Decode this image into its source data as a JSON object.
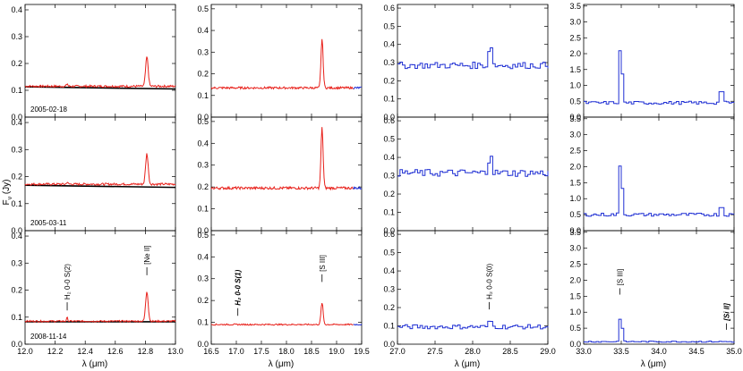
{
  "figure": {
    "ylabel_main": "F",
    "ylabel_sub": "ν",
    "ylabel_unit": " (Jy)",
    "xlabel": "λ (μm)"
  },
  "colors": {
    "red": "#e8211b",
    "blue": "#1f2fd4",
    "black": "#000000"
  },
  "chart_data": [
    {
      "id": "c0",
      "type": "line",
      "xlim": [
        12.0,
        13.0
      ],
      "ylim": [
        0.0,
        0.42
      ],
      "xticks": [
        12.0,
        12.2,
        12.4,
        12.6,
        12.8,
        13.0
      ],
      "xtick_labels": [
        "12.0",
        "12.2",
        "12.4",
        "12.6",
        "12.8",
        "13.0"
      ],
      "yticks": [
        0.0,
        0.1,
        0.2,
        0.3,
        0.4
      ],
      "ytick_labels": [
        "0.0",
        "0.1",
        "0.2",
        "0.3",
        "0.4"
      ],
      "rows": [
        {
          "date": "2005-02-18",
          "baseline": 0.115,
          "noise": 0.004,
          "line_color": "red",
          "black_fit": [
            [
              12.0,
              0.113
            ],
            [
              13.0,
              0.105
            ]
          ],
          "peaks": [
            {
              "x": 12.81,
              "peak": 0.225,
              "w": 0.012
            },
            {
              "x": 12.28,
              "peak": 0.125,
              "w": 0.006
            }
          ]
        },
        {
          "date": "2005-03-11",
          "baseline": 0.172,
          "noise": 0.004,
          "line_color": "red",
          "black_fit": [
            [
              12.0,
              0.168
            ],
            [
              13.0,
              0.16
            ]
          ],
          "peaks": [
            {
              "x": 12.81,
              "peak": 0.285,
              "w": 0.012
            },
            {
              "x": 12.28,
              "peak": 0.18,
              "w": 0.006
            }
          ]
        },
        {
          "date": "2008-11-14",
          "baseline": 0.085,
          "noise": 0.003,
          "line_color": "red",
          "black_fit": [
            [
              12.0,
              0.083
            ],
            [
              13.0,
              0.083
            ]
          ],
          "peaks": [
            {
              "x": 12.81,
              "peak": 0.195,
              "w": 0.012
            },
            {
              "x": 12.28,
              "peak": 0.098,
              "w": 0.006
            }
          ],
          "annotations": [
            {
              "x": 12.28,
              "y0": 0.125,
              "y1": 0.155,
              "label": "H₂ 0-0 S(2)",
              "bold_italic": false
            },
            {
              "x": 12.81,
              "y0": 0.255,
              "y1": 0.285,
              "label": "[Ne II]",
              "bold_italic": false
            }
          ]
        }
      ]
    },
    {
      "id": "c1",
      "type": "line",
      "xlim": [
        16.5,
        19.5
      ],
      "ylim": [
        0.0,
        0.52
      ],
      "xticks": [
        16.5,
        17.0,
        17.5,
        18.0,
        18.5,
        19.0,
        19.5
      ],
      "xtick_labels": [
        "16.5",
        "17.0",
        "17.5",
        "18.0",
        "18.5",
        "19.0",
        "19.5"
      ],
      "yticks": [
        0.0,
        0.1,
        0.2,
        0.3,
        0.4,
        0.5
      ],
      "ytick_labels": [
        "0.0",
        "0.1",
        "0.2",
        "0.3",
        "0.4",
        "0.5"
      ],
      "rows": [
        {
          "baseline": 0.135,
          "noise": 0.005,
          "line_color": "red",
          "blue_tail_from": 19.35,
          "peaks": [
            {
              "x": 18.71,
              "peak": 0.36,
              "w": 0.03
            }
          ]
        },
        {
          "baseline": 0.195,
          "noise": 0.006,
          "line_color": "red",
          "blue_tail_from": 19.35,
          "peaks": [
            {
              "x": 18.71,
              "peak": 0.47,
              "w": 0.03
            }
          ]
        },
        {
          "baseline": 0.09,
          "noise": 0.003,
          "line_color": "red",
          "blue_tail_from": 19.35,
          "peaks": [
            {
              "x": 18.71,
              "peak": 0.19,
              "w": 0.03
            }
          ],
          "annotations": [
            {
              "x": 17.03,
              "y0": 0.13,
              "y1": 0.165,
              "label": "H₂ 0-0 S(1)",
              "bold_italic": true
            },
            {
              "x": 18.71,
              "y0": 0.285,
              "y1": 0.32,
              "label": "[S III]",
              "bold_italic": false
            }
          ]
        }
      ]
    },
    {
      "id": "c2",
      "type": "line",
      "xlim": [
        27.0,
        29.0
      ],
      "ylim": [
        0.0,
        0.62
      ],
      "xticks": [
        27.0,
        27.5,
        28.0,
        28.5,
        29.0
      ],
      "xtick_labels": [
        "27.0",
        "27.5",
        "28.0",
        "28.5",
        "29.0"
      ],
      "yticks": [
        0.0,
        0.1,
        0.2,
        0.3,
        0.4,
        0.5,
        0.6
      ],
      "ytick_labels": [
        "0.0",
        "0.1",
        "0.2",
        "0.3",
        "0.4",
        "0.5",
        "0.6"
      ],
      "rows": [
        {
          "baseline": 0.285,
          "noise": 0.018,
          "line_color": "blue",
          "step": true,
          "peaks": [
            {
              "x": 28.22,
              "peak": 0.43,
              "w": 0.025
            }
          ]
        },
        {
          "baseline": 0.315,
          "noise": 0.02,
          "line_color": "blue",
          "step": true,
          "peaks": [
            {
              "x": 28.22,
              "peak": 0.455,
              "w": 0.025
            }
          ]
        },
        {
          "baseline": 0.095,
          "noise": 0.012,
          "line_color": "blue",
          "step": true,
          "peaks": [
            {
              "x": 28.22,
              "peak": 0.135,
              "w": 0.025
            }
          ],
          "annotations": [
            {
              "x": 28.22,
              "y0": 0.19,
              "y1": 0.23,
              "label": "H₂ 0-0 S(0)",
              "bold_italic": false
            }
          ]
        }
      ]
    },
    {
      "id": "c3",
      "type": "line",
      "xlim": [
        33.0,
        35.0
      ],
      "ylim": [
        0.0,
        3.55
      ],
      "xticks": [
        33.0,
        33.5,
        34.0,
        34.5,
        35.0
      ],
      "xtick_labels": [
        "33.0",
        "33.5",
        "34.0",
        "34.5",
        "35.0"
      ],
      "yticks": [
        0.0,
        0.5,
        1.0,
        1.5,
        2.0,
        2.5,
        3.0,
        3.5
      ],
      "ytick_labels": [
        "0.0",
        "0.5",
        "1.0",
        "1.5",
        "2.0",
        "2.5",
        "3.0",
        "3.5"
      ],
      "rows": [
        {
          "baseline": 0.45,
          "noise": 0.05,
          "line_color": "blue",
          "step": true,
          "peaks": [
            {
              "x": 33.48,
              "peak": 2.95,
              "w": 0.02
            }
          ],
          "edge_bump": {
            "x": 34.83,
            "peak": 0.8
          }
        },
        {
          "baseline": 0.5,
          "noise": 0.05,
          "line_color": "blue",
          "step": true,
          "peaks": [
            {
              "x": 33.48,
              "peak": 2.85,
              "w": 0.02
            }
          ],
          "edge_bump": {
            "x": 34.83,
            "peak": 0.72
          }
        },
        {
          "baseline": 0.08,
          "noise": 0.02,
          "line_color": "blue",
          "step": true,
          "peaks": [
            {
              "x": 33.48,
              "peak": 1.2,
              "w": 0.02
            }
          ],
          "annotations": [
            {
              "x": 33.48,
              "y0": 1.55,
              "y1": 1.75,
              "label": "[S III]",
              "bold_italic": false
            },
            {
              "x": 34.9,
              "y0": 0.45,
              "y1": 0.65,
              "label": "[Si II]",
              "bold_italic": true
            }
          ]
        }
      ]
    }
  ]
}
